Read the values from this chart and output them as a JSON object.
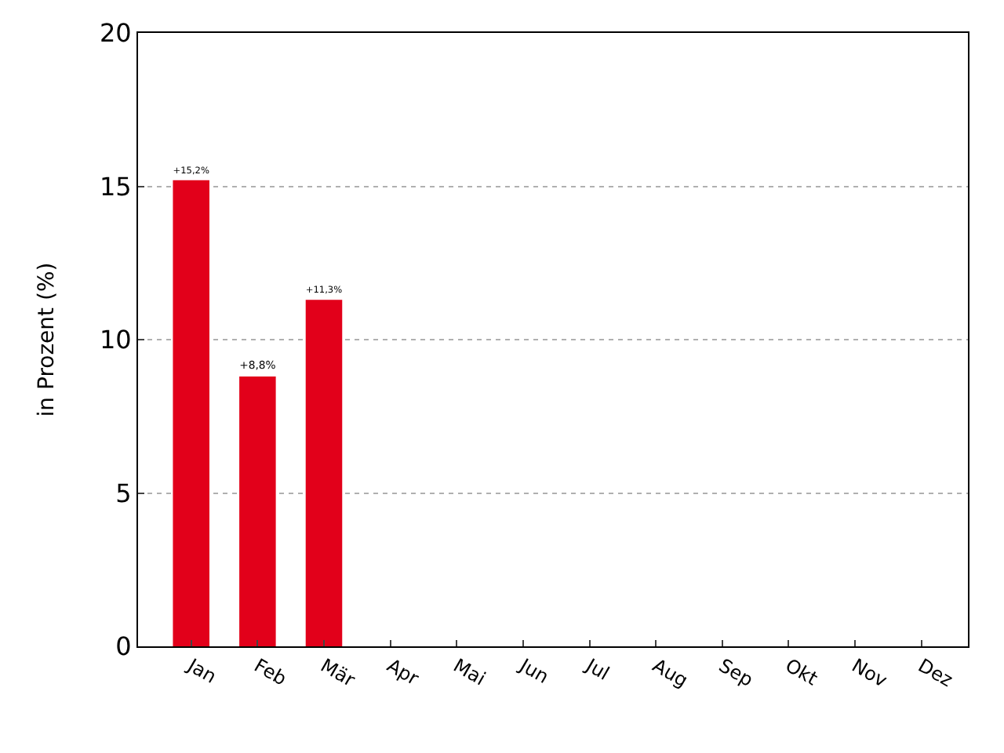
{
  "chart_data": {
    "type": "bar",
    "ylabel": "in Prozent (%)",
    "categories": [
      "Jan",
      "Feb",
      "Mär",
      "Apr",
      "Mai",
      "Jun",
      "Jul",
      "Aug",
      "Sep",
      "Okt",
      "Nov",
      "Dez"
    ],
    "values": [
      15.2,
      8.8,
      11.3,
      null,
      null,
      null,
      null,
      null,
      null,
      null,
      null,
      null
    ],
    "value_labels": [
      "+15,2%",
      "+8,8%",
      "+11,3%",
      null,
      null,
      null,
      null,
      null,
      null,
      null,
      null,
      null
    ],
    "color": "#e2001a",
    "ylim": [
      0,
      20
    ],
    "yticks": [
      0,
      5,
      10,
      15,
      20
    ],
    "grid": "y",
    "legend": false
  }
}
